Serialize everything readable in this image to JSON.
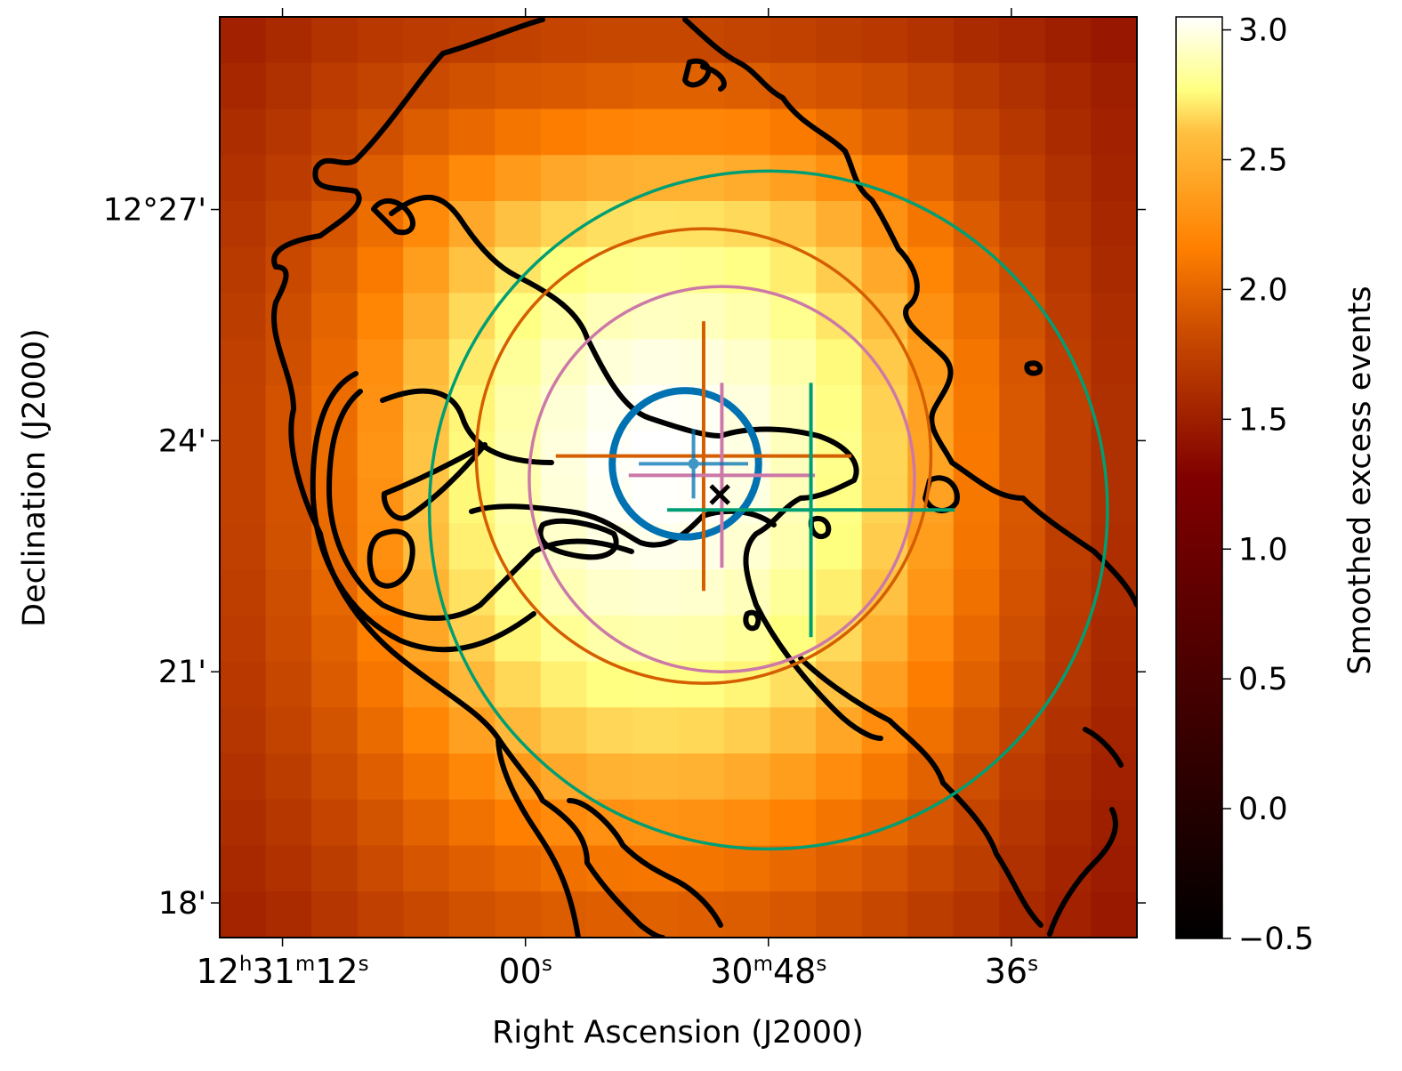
{
  "chart_data": {
    "type": "heatmap",
    "title": "",
    "xlabel": "Right Ascension (J2000)",
    "ylabel": "Declination (J2000)",
    "colorbar": {
      "label": "Smoothed excess events",
      "range": [
        -0.5,
        3.05
      ],
      "ticks": [
        -0.5,
        0.0,
        0.5,
        1.0,
        1.5,
        2.0,
        2.5,
        3.0
      ],
      "tick_labels": [
        "−0.5",
        "0.0",
        "0.5",
        "1.0",
        "1.5",
        "2.0",
        "2.5",
        "3.0"
      ],
      "colormap": "afmhot",
      "colormap_stops": [
        "#000000",
        "#800000",
        "#ff8000",
        "#ffff80",
        "#ffffff"
      ]
    },
    "x_ticks": [
      {
        "h": "12",
        "m": "31",
        "s": "12",
        "label_parts": [
          [
            "12",
            "h"
          ],
          [
            "31",
            "m"
          ],
          [
            "12",
            "s"
          ]
        ]
      },
      {
        "s": "00",
        "label_parts": [
          [
            "00",
            "s"
          ]
        ]
      },
      {
        "m": "30",
        "s": "48",
        "label_parts": [
          [
            "30",
            "m"
          ],
          [
            "48",
            "s"
          ]
        ]
      },
      {
        "s": "36",
        "label_parts": [
          [
            "36",
            "s"
          ]
        ]
      }
    ],
    "x_tick_ra_sec": [
      12,
      0,
      -12,
      -24
    ],
    "x_range_ra_sec": [
      15.1,
      -30.2
    ],
    "y_ticks": [
      {
        "label": "12°27'",
        "dec_arcmin": 27
      },
      {
        "label": "24'",
        "dec_arcmin": 24
      },
      {
        "label": "21'",
        "dec_arcmin": 21
      },
      {
        "label": "18'",
        "dec_arcmin": 18
      }
    ],
    "y_range_arcmin": [
      17.55,
      29.5
    ],
    "grid": false,
    "image": {
      "description": "Pixelated smoothed excess map, 20 columns x 20 rows, peak near center",
      "peak_value": 3.0,
      "peak_center_ra_sec": -9.7,
      "peak_center_dec_arcmin": 23.75,
      "edge_value": 0.55,
      "values": [
        [
          0.62,
          0.68,
          0.74,
          0.78,
          0.8,
          0.82,
          0.84,
          0.87,
          0.88,
          0.88,
          0.88,
          0.86,
          0.84,
          0.81,
          0.78,
          0.74,
          0.69,
          0.65,
          0.6,
          0.55
        ],
        [
          0.66,
          0.72,
          0.8,
          0.86,
          0.9,
          0.95,
          0.99,
          1.01,
          1.04,
          1.06,
          1.06,
          1.04,
          1.0,
          0.96,
          0.92,
          0.86,
          0.79,
          0.72,
          0.66,
          0.6
        ],
        [
          0.7,
          0.76,
          0.85,
          0.94,
          1.03,
          1.12,
          1.2,
          1.26,
          1.3,
          1.32,
          1.32,
          1.3,
          1.24,
          1.15,
          1.05,
          0.95,
          0.86,
          0.77,
          0.69,
          0.62
        ],
        [
          0.73,
          0.8,
          0.91,
          1.04,
          1.18,
          1.34,
          1.46,
          1.55,
          1.6,
          1.62,
          1.62,
          1.58,
          1.5,
          1.38,
          1.24,
          1.08,
          0.94,
          0.82,
          0.72,
          0.64
        ],
        [
          0.76,
          0.85,
          0.98,
          1.15,
          1.34,
          1.55,
          1.73,
          1.86,
          1.94,
          1.97,
          1.96,
          1.9,
          1.78,
          1.6,
          1.4,
          1.2,
          1.02,
          0.87,
          0.75,
          0.66
        ],
        [
          0.79,
          0.89,
          1.04,
          1.24,
          1.48,
          1.74,
          1.98,
          2.16,
          2.26,
          2.3,
          2.28,
          2.2,
          2.04,
          1.81,
          1.56,
          1.31,
          1.09,
          0.92,
          0.78,
          0.68
        ],
        [
          0.81,
          0.92,
          1.09,
          1.31,
          1.59,
          1.9,
          2.19,
          2.42,
          2.56,
          2.62,
          2.6,
          2.48,
          2.27,
          1.99,
          1.69,
          1.4,
          1.15,
          0.95,
          0.8,
          0.7
        ],
        [
          0.83,
          0.94,
          1.12,
          1.37,
          1.68,
          2.02,
          2.35,
          2.62,
          2.78,
          2.86,
          2.83,
          2.69,
          2.45,
          2.13,
          1.79,
          1.47,
          1.2,
          0.98,
          0.82,
          0.71
        ],
        [
          0.84,
          0.96,
          1.14,
          1.4,
          1.73,
          2.1,
          2.46,
          2.76,
          2.94,
          3.0,
          2.97,
          2.82,
          2.56,
          2.21,
          1.85,
          1.51,
          1.22,
          1.0,
          0.83,
          0.72
        ],
        [
          0.84,
          0.96,
          1.15,
          1.41,
          1.75,
          2.13,
          2.5,
          2.81,
          3.0,
          3.05,
          3.02,
          2.86,
          2.59,
          2.24,
          1.87,
          1.52,
          1.23,
          1.0,
          0.83,
          0.72
        ],
        [
          0.84,
          0.96,
          1.14,
          1.4,
          1.74,
          2.12,
          2.48,
          2.79,
          2.97,
          3.03,
          3.0,
          2.84,
          2.57,
          2.22,
          1.86,
          1.51,
          1.22,
          1.0,
          0.83,
          0.72
        ],
        [
          0.83,
          0.95,
          1.13,
          1.38,
          1.7,
          2.06,
          2.41,
          2.69,
          2.86,
          2.92,
          2.89,
          2.74,
          2.49,
          2.16,
          1.81,
          1.48,
          1.2,
          0.98,
          0.82,
          0.71
        ],
        [
          0.82,
          0.93,
          1.1,
          1.34,
          1.63,
          1.96,
          2.28,
          2.54,
          2.69,
          2.74,
          2.71,
          2.58,
          2.35,
          2.05,
          1.73,
          1.43,
          1.17,
          0.96,
          0.8,
          0.7
        ],
        [
          0.8,
          0.91,
          1.06,
          1.28,
          1.54,
          1.83,
          2.1,
          2.32,
          2.45,
          2.5,
          2.47,
          2.36,
          2.16,
          1.9,
          1.62,
          1.35,
          1.12,
          0.93,
          0.78,
          0.68
        ],
        [
          0.78,
          0.88,
          1.02,
          1.21,
          1.43,
          1.67,
          1.89,
          2.06,
          2.17,
          2.21,
          2.19,
          2.1,
          1.94,
          1.73,
          1.49,
          1.26,
          1.06,
          0.89,
          0.76,
          0.66
        ],
        [
          0.76,
          0.85,
          0.97,
          1.13,
          1.31,
          1.5,
          1.67,
          1.8,
          1.88,
          1.91,
          1.89,
          1.82,
          1.7,
          1.54,
          1.36,
          1.17,
          0.99,
          0.85,
          0.73,
          0.64
        ],
        [
          0.73,
          0.81,
          0.92,
          1.05,
          1.19,
          1.33,
          1.46,
          1.56,
          1.62,
          1.64,
          1.62,
          1.57,
          1.48,
          1.36,
          1.22,
          1.07,
          0.93,
          0.8,
          0.7,
          0.62
        ],
        [
          0.7,
          0.77,
          0.87,
          0.97,
          1.08,
          1.18,
          1.28,
          1.35,
          1.39,
          1.41,
          1.4,
          1.36,
          1.29,
          1.2,
          1.1,
          0.98,
          0.87,
          0.76,
          0.67,
          0.6
        ],
        [
          0.67,
          0.73,
          0.81,
          0.9,
          0.98,
          1.05,
          1.12,
          1.17,
          1.2,
          1.21,
          1.2,
          1.17,
          1.12,
          1.05,
          0.98,
          0.89,
          0.81,
          0.72,
          0.64,
          0.58
        ],
        [
          0.64,
          0.69,
          0.76,
          0.83,
          0.89,
          0.95,
          0.99,
          1.03,
          1.05,
          1.06,
          1.05,
          1.03,
          0.99,
          0.94,
          0.88,
          0.81,
          0.75,
          0.68,
          0.62,
          0.56
        ]
      ]
    },
    "overlays": {
      "circles": [
        {
          "name": "teal-circle",
          "color": "#009e73",
          "center_ra_sec": -12.0,
          "center_dec_arcmin": 23.1,
          "radius_arcmin": 4.4
        },
        {
          "name": "vermilion-circle",
          "color": "#d55e00",
          "center_ra_sec": -8.8,
          "center_dec_arcmin": 23.8,
          "radius_arcmin": 2.95
        },
        {
          "name": "pink-circle",
          "color": "#cc79a7",
          "center_ra_sec": -9.7,
          "center_dec_arcmin": 23.5,
          "radius_arcmin": 2.5
        },
        {
          "name": "blue-circle",
          "color": "#0072b2",
          "center_ra_sec": -7.9,
          "center_dec_arcmin": 23.7,
          "radius_arcmin": 0.95
        }
      ],
      "crosses": [
        {
          "name": "vermilion-cross",
          "color": "#d55e00",
          "center_ra_sec": -8.8,
          "center_dec_arcmin": 23.8,
          "half_ra_sec": 7.3,
          "half_dec_arcmin": 1.75
        },
        {
          "name": "pink-cross",
          "color": "#cc79a7",
          "center_ra_sec": -9.7,
          "center_dec_arcmin": 23.55,
          "half_ra_sec": 4.6,
          "half_dec_arcmin": 1.2
        },
        {
          "name": "teal-cross",
          "color": "#009e73",
          "center_ra_sec": -14.1,
          "center_dec_arcmin": 23.1,
          "half_ra_sec": 7.1,
          "half_dec_arcmin": 1.65
        },
        {
          "name": "blue-cross",
          "color": "#0072b2",
          "center_ra_sec": -8.3,
          "center_dec_arcmin": 23.7,
          "half_ra_sec": 2.7,
          "half_dec_arcmin": 0.45
        }
      ],
      "x_marker": {
        "name": "x-marker",
        "color": "#000000",
        "ra_sec": -9.6,
        "dec_arcmin": 23.3
      }
    },
    "contours_color": "#000000"
  }
}
